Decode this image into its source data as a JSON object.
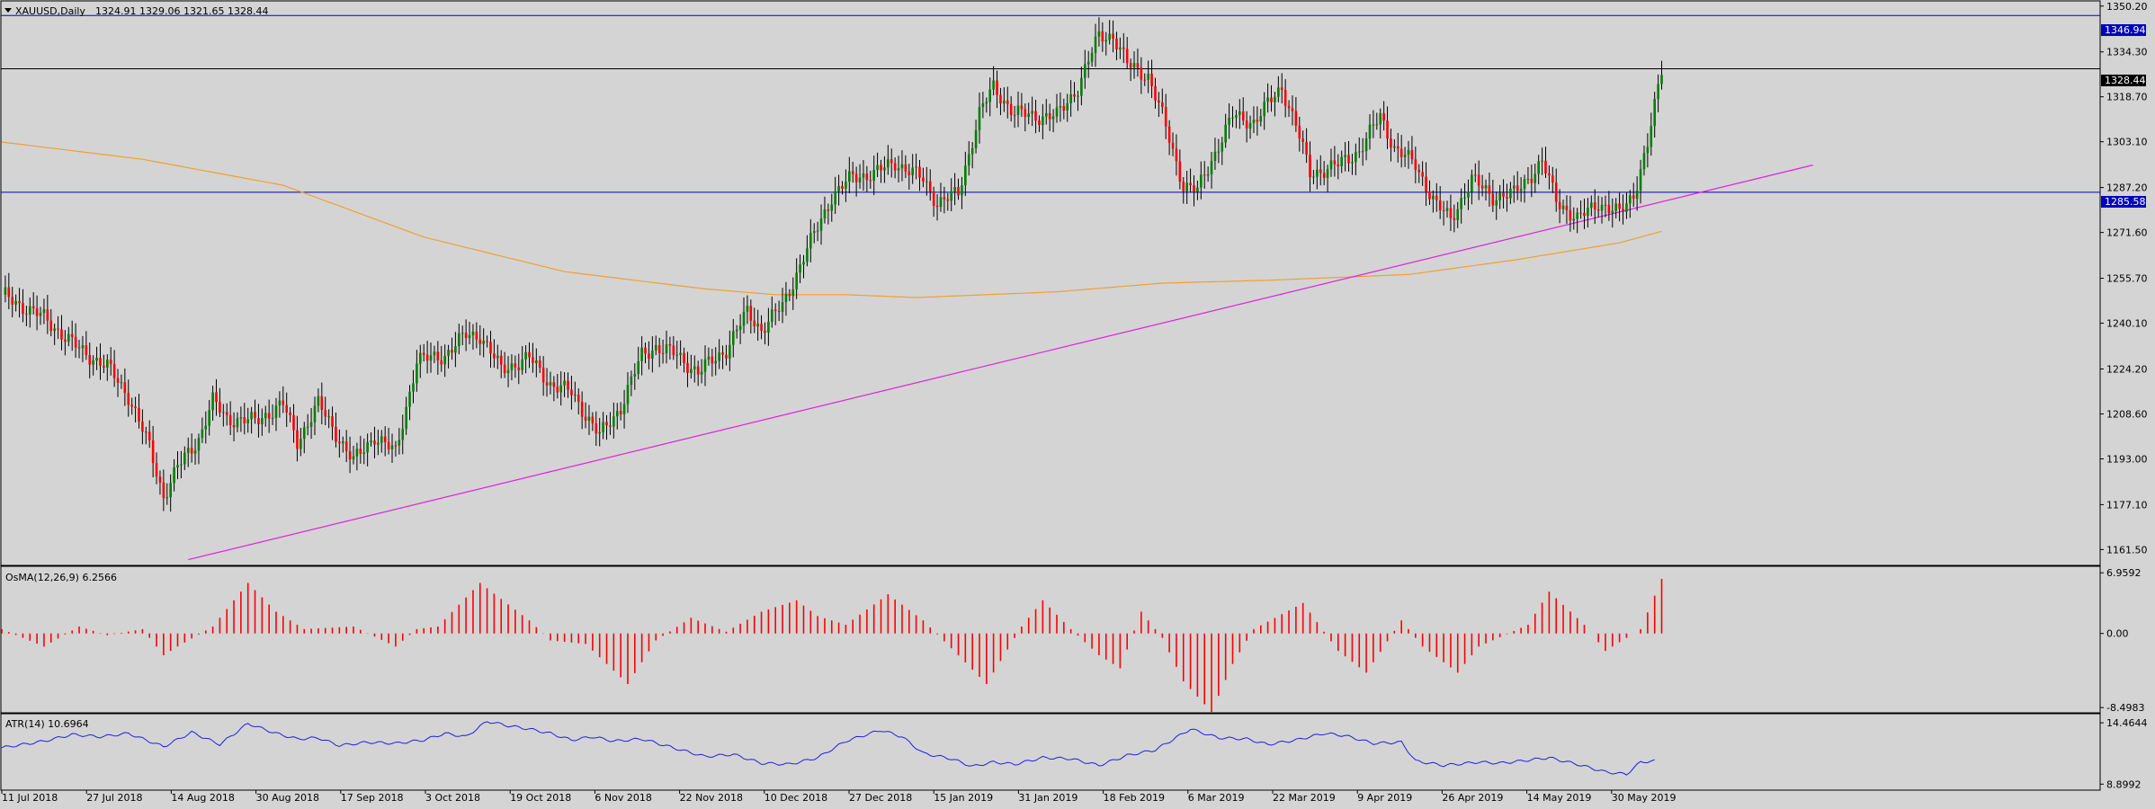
{
  "colors": {
    "background": "#d4d4d4",
    "frame": "#000000",
    "bull": "#008000",
    "bear": "#ff0000",
    "ma": "#f0a030",
    "trend": "#e020e0",
    "hline": "#0000c0",
    "atr": "#2020e0",
    "osma": "#ff0000",
    "label_blue_bg": "#0000c0",
    "label_black_bg": "#000000"
  },
  "header": {
    "arrow_icon": "triangle-down-icon",
    "symbol": "XAUUSD,Daily",
    "ohlc": "1324.91 1329.06 1321.65 1328.44"
  },
  "main_axis": {
    "labels": [
      "1350.20",
      "1334.30",
      "1318.70",
      "1303.10",
      "1287.20",
      "1271.60",
      "1255.70",
      "1240.10",
      "1224.20",
      "1208.60",
      "1193.00",
      "1177.10",
      "1161.50"
    ],
    "range": [
      1156.0,
      1352.0
    ],
    "markers": {
      "resistance": "1346.94",
      "current": "1328.44",
      "support": "1285.58"
    }
  },
  "osma": {
    "label": "OsMA(12,26,9) 6.2566",
    "axis_labels": [
      "6.9592",
      "0.00",
      "-8.4983"
    ],
    "range": [
      -9.0,
      7.5
    ]
  },
  "atr": {
    "label": "ATR(14) 10.6964",
    "axis_labels": [
      "14.4644",
      "8.8992"
    ],
    "range": [
      8.6,
      14.8
    ]
  },
  "x_axis": {
    "dates": [
      "11 Jul 2018",
      "27 Jul 2018",
      "14 Aug 2018",
      "30 Aug 2018",
      "17 Sep 2018",
      "3 Oct 2018",
      "19 Oct 2018",
      "6 Nov 2018",
      "22 Nov 2018",
      "10 Dec 2018",
      "27 Dec 2018",
      "15 Jan 2019",
      "31 Jan 2019",
      "18 Feb 2019",
      "6 Mar 2019",
      "22 Mar 2019",
      "9 Apr 2019",
      "26 Apr 2019",
      "14 May 2019",
      "30 May 2019"
    ]
  },
  "chart_data": {
    "type": "candlestick",
    "symbol": "XAUUSD",
    "timeframe": "Daily",
    "close_path": [
      [
        0,
        1250
      ],
      [
        12,
        1242
      ],
      [
        22,
        1231
      ],
      [
        30,
        1225
      ],
      [
        36,
        1215
      ],
      [
        42,
        1197
      ],
      [
        46,
        1180
      ],
      [
        50,
        1190
      ],
      [
        56,
        1200
      ],
      [
        60,
        1213
      ],
      [
        64,
        1207
      ],
      [
        72,
        1206
      ],
      [
        80,
        1212
      ],
      [
        84,
        1199
      ],
      [
        90,
        1212
      ],
      [
        96,
        1200
      ],
      [
        100,
        1192
      ],
      [
        106,
        1201
      ],
      [
        112,
        1195
      ],
      [
        118,
        1227
      ],
      [
        126,
        1229
      ],
      [
        132,
        1236
      ],
      [
        136,
        1236
      ],
      [
        142,
        1224
      ],
      [
        150,
        1228
      ],
      [
        156,
        1219
      ],
      [
        162,
        1216
      ],
      [
        170,
        1201
      ],
      [
        176,
        1211
      ],
      [
        182,
        1229
      ],
      [
        186,
        1232
      ],
      [
        192,
        1229
      ],
      [
        198,
        1223
      ],
      [
        206,
        1231
      ],
      [
        212,
        1244
      ],
      [
        216,
        1238
      ],
      [
        222,
        1246
      ],
      [
        228,
        1263
      ],
      [
        236,
        1284
      ],
      [
        242,
        1291
      ],
      [
        248,
        1292
      ],
      [
        254,
        1296
      ],
      [
        262,
        1290
      ],
      [
        266,
        1282
      ],
      [
        272,
        1285
      ],
      [
        278,
        1313
      ],
      [
        282,
        1322
      ],
      [
        288,
        1313
      ],
      [
        294,
        1312
      ],
      [
        300,
        1312
      ],
      [
        306,
        1322
      ],
      [
        312,
        1340
      ],
      [
        316,
        1340
      ],
      [
        320,
        1330
      ],
      [
        326,
        1326
      ],
      [
        330,
        1312
      ],
      [
        336,
        1288
      ],
      [
        340,
        1286
      ],
      [
        346,
        1302
      ],
      [
        350,
        1312
      ],
      [
        356,
        1310
      ],
      [
        364,
        1322
      ],
      [
        368,
        1309
      ],
      [
        372,
        1292
      ],
      [
        380,
        1295
      ],
      [
        386,
        1300
      ],
      [
        392,
        1312
      ],
      [
        396,
        1301
      ],
      [
        402,
        1295
      ],
      [
        408,
        1281
      ],
      [
        412,
        1276
      ],
      [
        418,
        1290
      ],
      [
        424,
        1284
      ],
      [
        430,
        1285
      ],
      [
        438,
        1296
      ],
      [
        442,
        1283
      ],
      [
        448,
        1276
      ],
      [
        454,
        1282
      ],
      [
        460,
        1278
      ],
      [
        464,
        1285
      ],
      [
        468,
        1302
      ],
      [
        472,
        1328
      ]
    ],
    "sma": [
      [
        0,
        1303
      ],
      [
        40,
        1297
      ],
      [
        80,
        1288
      ],
      [
        120,
        1270
      ],
      [
        160,
        1258
      ],
      [
        200,
        1252
      ],
      [
        220,
        1250
      ],
      [
        240,
        1250
      ],
      [
        260,
        1249
      ],
      [
        280,
        1250
      ],
      [
        300,
        1251
      ],
      [
        330,
        1254
      ],
      [
        360,
        1255
      ],
      [
        400,
        1257
      ],
      [
        430,
        1262
      ],
      [
        460,
        1268
      ],
      [
        472,
        1272
      ]
    ],
    "trendline": [
      [
        53,
        1158
      ],
      [
        515,
        1295
      ]
    ],
    "osma_path": [
      [
        0,
        0.5
      ],
      [
        12,
        -1.5
      ],
      [
        22,
        0.8
      ],
      [
        30,
        -0.2
      ],
      [
        40,
        0.5
      ],
      [
        46,
        -2.5
      ],
      [
        50,
        -1.5
      ],
      [
        60,
        0.8
      ],
      [
        70,
        5.8
      ],
      [
        78,
        2.5
      ],
      [
        86,
        0.5
      ],
      [
        100,
        0.8
      ],
      [
        112,
        -1.5
      ],
      [
        118,
        0.5
      ],
      [
        124,
        0.8
      ],
      [
        136,
        5.8
      ],
      [
        150,
        1.5
      ],
      [
        156,
        -0.8
      ],
      [
        166,
        -1.2
      ],
      [
        178,
        -5.8
      ],
      [
        186,
        -0.8
      ],
      [
        196,
        1.8
      ],
      [
        206,
        0.2
      ],
      [
        216,
        2.5
      ],
      [
        226,
        3.8
      ],
      [
        232,
        2.0
      ],
      [
        240,
        1.0
      ],
      [
        252,
        4.5
      ],
      [
        262,
        1.5
      ],
      [
        272,
        -2.5
      ],
      [
        280,
        -5.8
      ],
      [
        290,
        0.8
      ],
      [
        296,
        3.8
      ],
      [
        304,
        0.5
      ],
      [
        312,
        -2.5
      ],
      [
        318,
        -4.0
      ],
      [
        324,
        2.5
      ],
      [
        330,
        -0.5
      ],
      [
        336,
        -5.5
      ],
      [
        344,
        -9.0
      ],
      [
        350,
        -3.5
      ],
      [
        356,
        0.5
      ],
      [
        370,
        3.5
      ],
      [
        380,
        -2.0
      ],
      [
        388,
        -4.5
      ],
      [
        398,
        1.5
      ],
      [
        404,
        -1.5
      ],
      [
        414,
        -4.5
      ],
      [
        420,
        -1.5
      ],
      [
        434,
        1.0
      ],
      [
        440,
        4.8
      ],
      [
        450,
        1.0
      ],
      [
        456,
        -2.0
      ],
      [
        466,
        0.5
      ],
      [
        472,
        6.26
      ]
    ],
    "atr_path": [
      [
        0,
        12.2
      ],
      [
        12,
        12.8
      ],
      [
        20,
        13.4
      ],
      [
        28,
        13.2
      ],
      [
        36,
        13.5
      ],
      [
        46,
        12.3
      ],
      [
        54,
        13.6
      ],
      [
        62,
        12.5
      ],
      [
        70,
        14.4
      ],
      [
        78,
        13.5
      ],
      [
        84,
        13.0
      ],
      [
        90,
        13.1
      ],
      [
        96,
        12.4
      ],
      [
        104,
        12.7
      ],
      [
        112,
        12.6
      ],
      [
        120,
        12.9
      ],
      [
        126,
        13.5
      ],
      [
        132,
        13.2
      ],
      [
        138,
        14.6
      ],
      [
        144,
        14.2
      ],
      [
        150,
        13.9
      ],
      [
        156,
        13.5
      ],
      [
        162,
        12.9
      ],
      [
        168,
        13.2
      ],
      [
        174,
        12.8
      ],
      [
        182,
        13.0
      ],
      [
        192,
        12.1
      ],
      [
        200,
        11.4
      ],
      [
        208,
        11.6
      ],
      [
        216,
        10.8
      ],
      [
        224,
        10.7
      ],
      [
        232,
        11.3
      ],
      [
        240,
        12.8
      ],
      [
        250,
        13.8
      ],
      [
        256,
        13.2
      ],
      [
        262,
        11.7
      ],
      [
        270,
        11.2
      ],
      [
        276,
        10.5
      ],
      [
        282,
        10.9
      ],
      [
        288,
        10.7
      ],
      [
        296,
        11.3
      ],
      [
        304,
        11.2
      ],
      [
        312,
        10.6
      ],
      [
        320,
        11.5
      ],
      [
        328,
        12.0
      ],
      [
        338,
        13.9
      ],
      [
        346,
        13.1
      ],
      [
        354,
        13.0
      ],
      [
        360,
        12.5
      ],
      [
        368,
        12.9
      ],
      [
        376,
        13.5
      ],
      [
        382,
        13.3
      ],
      [
        390,
        12.6
      ],
      [
        398,
        12.7
      ],
      [
        402,
        11.0
      ],
      [
        410,
        10.6
      ],
      [
        420,
        10.9
      ],
      [
        426,
        10.8
      ],
      [
        432,
        11.0
      ],
      [
        440,
        11.3
      ],
      [
        448,
        10.7
      ],
      [
        456,
        10.0
      ],
      [
        462,
        9.8
      ],
      [
        466,
        10.9
      ],
      [
        470,
        11.0
      ]
    ]
  }
}
